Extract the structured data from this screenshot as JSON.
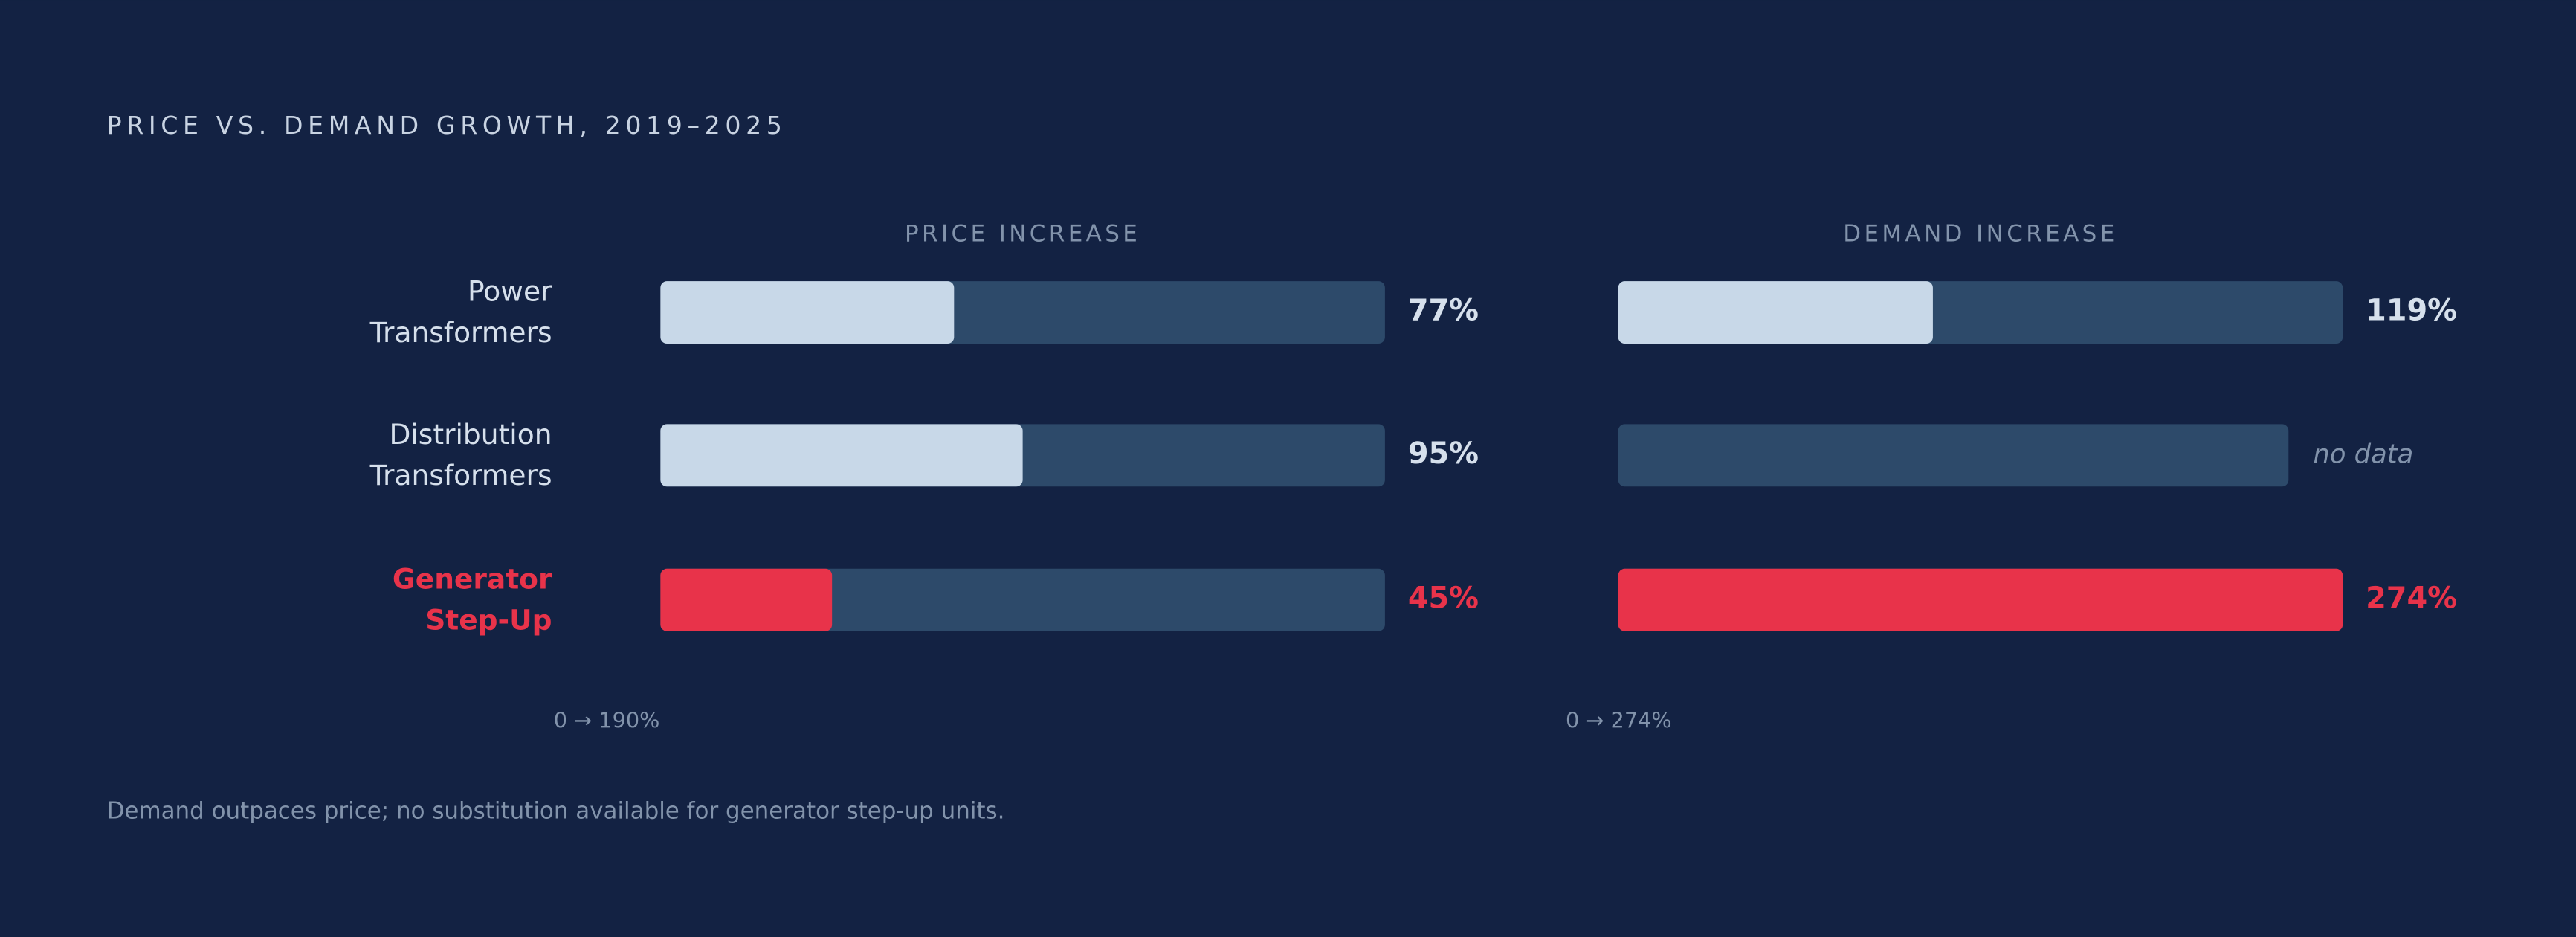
{
  "title": "PRICE VS. DEMAND GROWTH, 2019–2025",
  "note": "Demand outpaces price; no substitution available for generator step-up units.",
  "chart_data": {
    "type": "bar",
    "categories": [
      "Power Transformers",
      "Distribution Transformers",
      "Generator Step-Up"
    ],
    "colors": [
      "#c8d8e8",
      "#c8d8e8",
      "#e8334a"
    ],
    "track_color": "#2d4a6a",
    "series": [
      {
        "name": "PRICE INCREASE",
        "values": [
          77,
          95,
          45
        ],
        "value_labels": [
          "77%",
          "95%",
          "45%"
        ],
        "xlim": [
          0,
          190
        ],
        "range_label": "0 → 190%"
      },
      {
        "name": "DEMAND INCREASE",
        "values": [
          119,
          null,
          274
        ],
        "value_labels": [
          "119%",
          null,
          "274%"
        ],
        "xlim": [
          0,
          274
        ],
        "range_label": "0 → 274%",
        "null_label": "no data"
      }
    ]
  }
}
